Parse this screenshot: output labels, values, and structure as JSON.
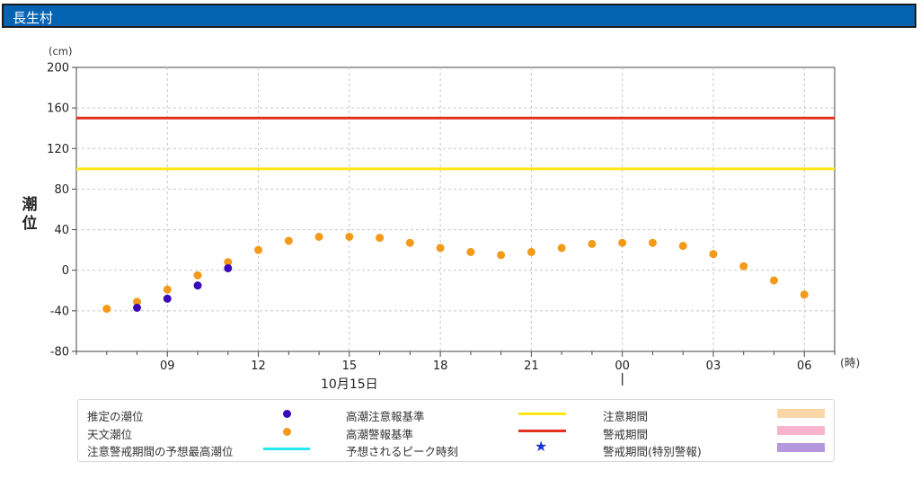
{
  "header": {
    "title": "長生村"
  },
  "colors": {
    "header_bg": "#0563b4",
    "estimated": "#3a0ab8",
    "astronomical": "#f39a1a",
    "caution_line": "#ffe619",
    "warning_line": "#e2321f",
    "forecast_max": "#27e8f0",
    "peak_star": "#1635d6",
    "caution_period": "#fad5a6",
    "warning_period": "#f9b3cc",
    "special_period": "#b497dd"
  },
  "legend": {
    "estimated_label": "推定の潮位",
    "astronomical_label": "天文潮位",
    "forecast_max_label": "注意警戒期間の予想最高潮位",
    "caution_line_label": "高潮注意報基準",
    "warning_line_label": "高潮警報基準",
    "peak_label": "予想されるピーク時刻",
    "caution_period_label": "注意期間",
    "warning_period_label": "警戒期間",
    "special_period_label": "警戒期間(特別警報)"
  },
  "chart_data": {
    "type": "scatter",
    "title": "",
    "ylabel": "潮位",
    "y_unit": "(cm)",
    "x_unit": "(時)",
    "ylim": [
      -80,
      200
    ],
    "y_ticks": [
      -80,
      -40,
      0,
      40,
      80,
      120,
      160,
      200
    ],
    "x_hours": [
      7,
      8,
      9,
      10,
      11,
      12,
      13,
      14,
      15,
      16,
      17,
      18,
      19,
      20,
      21,
      22,
      23,
      24,
      25,
      26,
      27,
      28,
      29,
      30
    ],
    "x_range_hours": [
      6,
      31
    ],
    "x_ticks": [
      {
        "hour": 9,
        "label": "09"
      },
      {
        "hour": 12,
        "label": "12"
      },
      {
        "hour": 15,
        "label": "15"
      },
      {
        "hour": 18,
        "label": "18"
      },
      {
        "hour": 21,
        "label": "21"
      },
      {
        "hour": 24,
        "label": "00"
      },
      {
        "hour": 27,
        "label": "03"
      },
      {
        "hour": 30,
        "label": "06"
      }
    ],
    "date_labels": [
      {
        "hour": 15,
        "label": "10月15日"
      }
    ],
    "date_separator_hour": 24,
    "grid": true,
    "series": [
      {
        "name": "天文潮位",
        "kind": "astronomical",
        "values": [
          -38,
          -31,
          -19,
          -5,
          8,
          20,
          29,
          33,
          33,
          32,
          27,
          22,
          18,
          15,
          18,
          22,
          26,
          27,
          27,
          24,
          16,
          4,
          -10,
          -24
        ]
      },
      {
        "name": "推定の潮位",
        "kind": "estimated",
        "values": [
          null,
          -37,
          -28,
          -15,
          2,
          null,
          null,
          null,
          null,
          null,
          null,
          null,
          null,
          null,
          null,
          null,
          null,
          null,
          null,
          null,
          null,
          null,
          null,
          null
        ]
      }
    ],
    "threshold_lines": [
      {
        "name": "高潮警報基準",
        "value": 150
      },
      {
        "name": "高潮注意報基準",
        "value": 100
      }
    ]
  }
}
